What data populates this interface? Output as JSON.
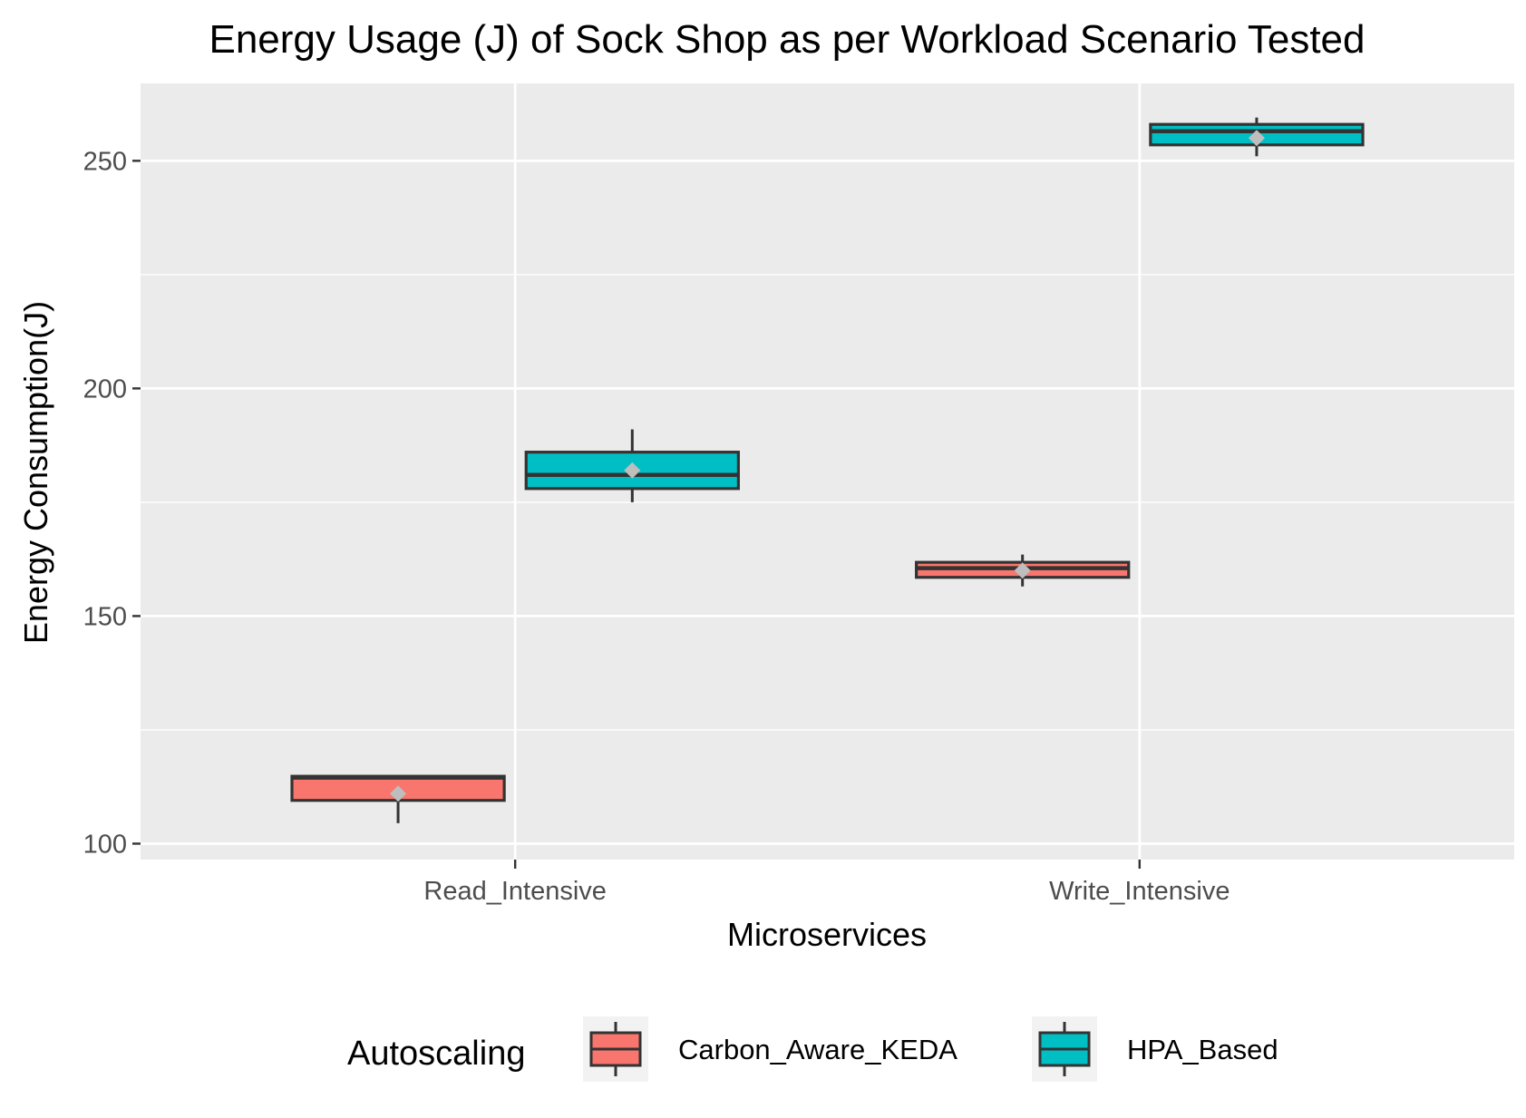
{
  "chart_data": {
    "type": "boxplot",
    "title": "Energy Usage (J) of Sock Shop as per Workload Scenario Tested",
    "xlabel": "Microservices",
    "ylabel": "Energy Consumption(J)",
    "categories": [
      "Read_Intensive",
      "Write_Intensive"
    ],
    "ylim": [
      96.5,
      267
    ],
    "yticks": [
      100,
      150,
      200,
      250
    ],
    "ytick_labels": [
      "100",
      "150",
      "200",
      "250"
    ],
    "grid": true,
    "legend": {
      "title": "Autoscaling",
      "position": "bottom"
    },
    "series": [
      {
        "name": "Carbon_Aware_KEDA",
        "color": "#F8766D",
        "boxes": [
          {
            "category": "Read_Intensive",
            "min": 104.5,
            "q1": 109.5,
            "median": 114.5,
            "q3": 114.8,
            "max": 114.8,
            "mean": 111.0
          },
          {
            "category": "Write_Intensive",
            "min": 156.5,
            "q1": 158.5,
            "median": 160.5,
            "q3": 161.8,
            "max": 163.5,
            "mean": 160.0
          }
        ]
      },
      {
        "name": "HPA_Based",
        "color": "#00BFC4",
        "boxes": [
          {
            "category": "Read_Intensive",
            "min": 175.0,
            "q1": 178.0,
            "median": 181.0,
            "q3": 186.0,
            "max": 191.0,
            "mean": 182.0
          },
          {
            "category": "Write_Intensive",
            "min": 251.0,
            "q1": 253.5,
            "median": 256.5,
            "q3": 258.0,
            "max": 259.5,
            "mean": 255.0
          }
        ]
      }
    ],
    "colors": {
      "panel_background": "#EBEBEB",
      "grid": "#FFFFFF",
      "box_outline": "#333333",
      "mean_marker": "#BEBEBE",
      "tick_text": "#4D4D4D"
    },
    "mean_marker_shape": "diamond"
  }
}
